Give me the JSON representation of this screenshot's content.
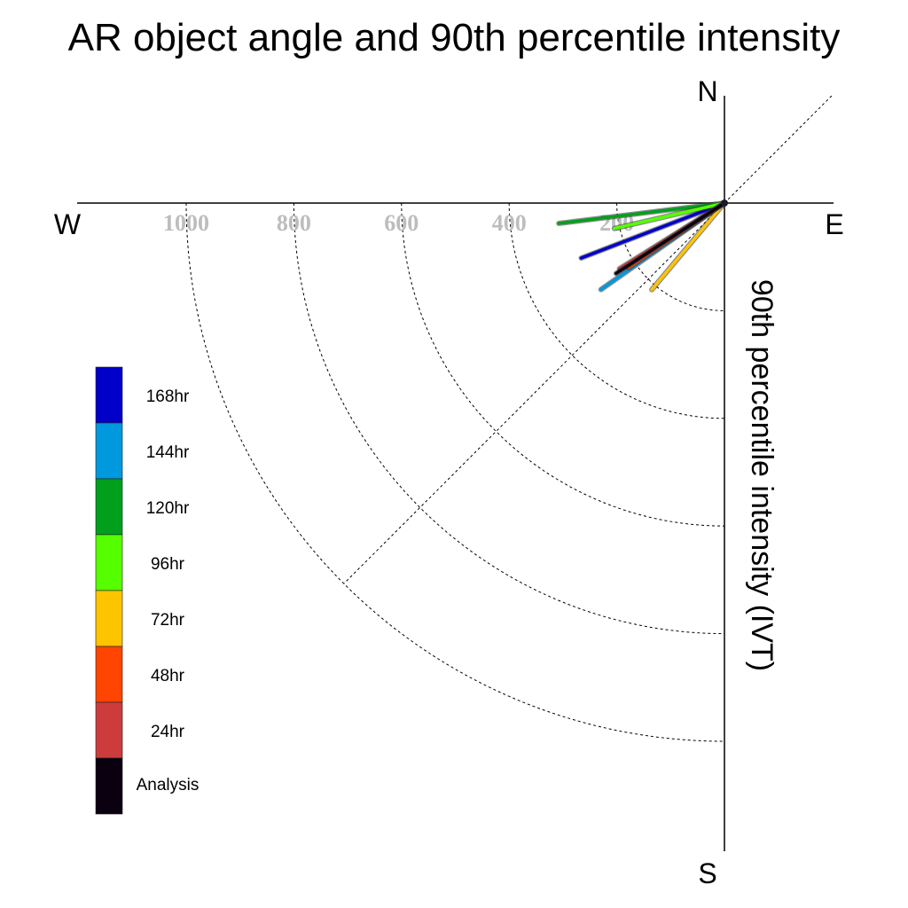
{
  "chart_data": {
    "type": "polar-quadrant",
    "title": "AR object angle and 90th percentile intensity",
    "ylabel": "90th percentile intensity (IVT)",
    "compass": {
      "north": "N",
      "south": "S",
      "east": "E",
      "west": "W"
    },
    "radial_ticks": [
      200,
      400,
      600,
      800,
      1000
    ],
    "radial_tick_labels": [
      "200",
      "400",
      "600",
      "800",
      "1000"
    ],
    "rlim": [
      0,
      1200
    ],
    "angular_range_deg": [
      180,
      270
    ],
    "grid": true,
    "legend_position": "left",
    "series": [
      {
        "name": "Analysis",
        "color": "#0a0010",
        "angle_deg": 213,
        "intensity": 240
      },
      {
        "name": "24hr",
        "color": "#cc3c3c",
        "angle_deg": 212,
        "intensity": 230
      },
      {
        "name": "48hr",
        "color": "#ff4500",
        "angle_deg": 214,
        "intensity": 215
      },
      {
        "name": "72hr",
        "color": "#ffc400",
        "angle_deg": 230,
        "intensity": 210
      },
      {
        "name": "96hr",
        "color": "#55ff00",
        "angle_deg": 193,
        "intensity": 210
      },
      {
        "name": "120hr",
        "color": "#00a01c",
        "angle_deg": 187,
        "intensity": 310
      },
      {
        "name": "144hr",
        "color": "#0099dd",
        "angle_deg": 215,
        "intensity": 280
      },
      {
        "name": "168hr",
        "color": "#0000c8",
        "angle_deg": 201,
        "intensity": 285
      }
    ]
  }
}
